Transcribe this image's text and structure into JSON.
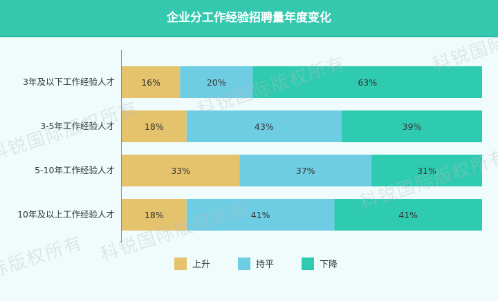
{
  "title": "企业分工作经验招聘量年度变化",
  "watermark": "科锐国际版权所有",
  "chart_data": {
    "type": "bar",
    "orientation": "horizontal",
    "stacked": true,
    "normalized": true,
    "title": "企业分工作经验招聘量年度变化",
    "categories": [
      "3年及以下工作经验人才",
      "3-5年工作经验人才",
      "5-10年工作经验人才",
      "10年及以上工作经验人才"
    ],
    "series": [
      {
        "name": "上升",
        "color": "#e5c26c",
        "values": [
          16,
          18,
          33,
          18
        ]
      },
      {
        "name": "持平",
        "color": "#6fcde3",
        "values": [
          20,
          43,
          37,
          41
        ]
      },
      {
        "name": "下降",
        "color": "#2fcbb0",
        "values": [
          63,
          39,
          31,
          41
        ]
      }
    ],
    "unit": "%",
    "legend_position": "bottom",
    "grid": false
  }
}
